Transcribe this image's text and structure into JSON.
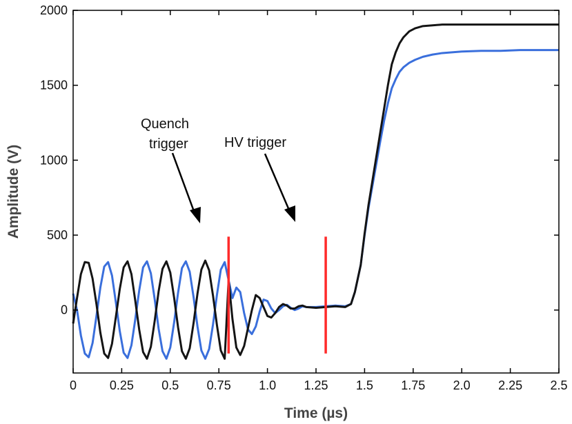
{
  "chart_data": {
    "type": "line",
    "title": "",
    "xlabel": "Time (µs)",
    "ylabel": "Amplitude (V)",
    "xlim": [
      0,
      2.5
    ],
    "ylim": [
      -420,
      2000
    ],
    "x_ticks": [
      0,
      0.25,
      0.5,
      0.75,
      1.0,
      1.25,
      1.5,
      1.75,
      2.0,
      2.25,
      2.5
    ],
    "x_tick_labels": [
      "0",
      "0.25",
      "0.5",
      "0.75",
      "1.0",
      "1.25",
      "1.5",
      "1.75",
      "2.0",
      "2.25",
      "2.5"
    ],
    "y_ticks": [
      0,
      500,
      1000,
      1500,
      2000
    ],
    "y_tick_labels": [
      "0",
      "500",
      "1000",
      "1500",
      "2000"
    ],
    "grid": false,
    "series": [
      {
        "name": "blue trace",
        "color": "#3a6fdc",
        "x": [
          0,
          0.02,
          0.04,
          0.06,
          0.08,
          0.1,
          0.12,
          0.14,
          0.16,
          0.18,
          0.2,
          0.22,
          0.24,
          0.26,
          0.28,
          0.3,
          0.32,
          0.34,
          0.36,
          0.38,
          0.4,
          0.42,
          0.44,
          0.46,
          0.48,
          0.5,
          0.52,
          0.54,
          0.56,
          0.58,
          0.6,
          0.62,
          0.64,
          0.66,
          0.68,
          0.7,
          0.72,
          0.74,
          0.76,
          0.78,
          0.8,
          0.82,
          0.84,
          0.86,
          0.88,
          0.9,
          0.92,
          0.94,
          0.96,
          0.98,
          1.0,
          1.02,
          1.04,
          1.06,
          1.08,
          1.1,
          1.12,
          1.14,
          1.16,
          1.18,
          1.2,
          1.25,
          1.3,
          1.35,
          1.4,
          1.43,
          1.45,
          1.48,
          1.5,
          1.52,
          1.55,
          1.58,
          1.6,
          1.62,
          1.64,
          1.66,
          1.68,
          1.7,
          1.73,
          1.76,
          1.8,
          1.85,
          1.9,
          1.95,
          2.0,
          2.1,
          2.2,
          2.3,
          2.4,
          2.5
        ],
        "values": [
          110,
          0,
          -170,
          -290,
          -315,
          -220,
          -40,
          150,
          290,
          320,
          230,
          50,
          -140,
          -285,
          -320,
          -235,
          -60,
          130,
          285,
          325,
          245,
          70,
          -125,
          -275,
          -325,
          -250,
          -80,
          115,
          280,
          325,
          255,
          85,
          -110,
          -270,
          -325,
          -260,
          -95,
          100,
          270,
          320,
          200,
          80,
          150,
          120,
          -20,
          -130,
          -160,
          -110,
          -10,
          70,
          60,
          10,
          -20,
          0,
          25,
          35,
          15,
          0,
          10,
          25,
          20,
          20,
          25,
          30,
          25,
          40,
          120,
          300,
          500,
          680,
          900,
          1120,
          1260,
          1380,
          1480,
          1540,
          1590,
          1620,
          1650,
          1670,
          1690,
          1705,
          1715,
          1720,
          1725,
          1730,
          1730,
          1735,
          1735,
          1735
        ]
      },
      {
        "name": "black trace",
        "color": "#141414",
        "x": [
          0,
          0.02,
          0.04,
          0.06,
          0.08,
          0.1,
          0.12,
          0.14,
          0.16,
          0.18,
          0.2,
          0.22,
          0.24,
          0.26,
          0.28,
          0.3,
          0.32,
          0.34,
          0.36,
          0.38,
          0.4,
          0.42,
          0.44,
          0.46,
          0.48,
          0.5,
          0.52,
          0.54,
          0.56,
          0.58,
          0.6,
          0.62,
          0.64,
          0.66,
          0.68,
          0.7,
          0.72,
          0.74,
          0.76,
          0.78,
          0.8,
          0.82,
          0.84,
          0.86,
          0.88,
          0.9,
          0.92,
          0.94,
          0.96,
          0.98,
          1.0,
          1.02,
          1.04,
          1.06,
          1.08,
          1.1,
          1.12,
          1.14,
          1.16,
          1.18,
          1.2,
          1.25,
          1.3,
          1.35,
          1.4,
          1.43,
          1.45,
          1.48,
          1.5,
          1.52,
          1.55,
          1.58,
          1.6,
          1.62,
          1.64,
          1.66,
          1.68,
          1.7,
          1.73,
          1.76,
          1.8,
          1.85,
          1.9,
          1.95,
          2.0,
          2.1,
          2.2,
          2.3,
          2.4,
          2.5
        ],
        "values": [
          -90,
          80,
          240,
          320,
          315,
          210,
          40,
          -150,
          -290,
          -320,
          -225,
          -45,
          140,
          285,
          325,
          240,
          60,
          -130,
          -280,
          -325,
          -245,
          -70,
          125,
          275,
          325,
          250,
          80,
          -115,
          -275,
          -325,
          -255,
          -85,
          110,
          270,
          330,
          265,
          95,
          -100,
          -270,
          -325,
          200,
          -60,
          -250,
          -300,
          -240,
          -120,
          0,
          100,
          80,
          20,
          -40,
          -50,
          -20,
          20,
          40,
          30,
          10,
          10,
          25,
          30,
          20,
          15,
          20,
          25,
          20,
          40,
          120,
          300,
          510,
          700,
          940,
          1180,
          1340,
          1500,
          1640,
          1720,
          1780,
          1820,
          1860,
          1880,
          1895,
          1900,
          1905,
          1905,
          1905,
          1905,
          1905,
          1905,
          1905,
          1905
        ]
      }
    ],
    "vertical_markers": [
      {
        "x": 0.8,
        "y_range": [
          -290,
          490
        ],
        "color": "#ff2a2a"
      },
      {
        "x": 1.3,
        "y_range": [
          -290,
          490
        ],
        "color": "#ff2a2a"
      }
    ],
    "annotations": [
      {
        "lines": [
          "Quench",
          "trigger"
        ]
      },
      {
        "lines": [
          "HV trigger"
        ]
      }
    ]
  }
}
